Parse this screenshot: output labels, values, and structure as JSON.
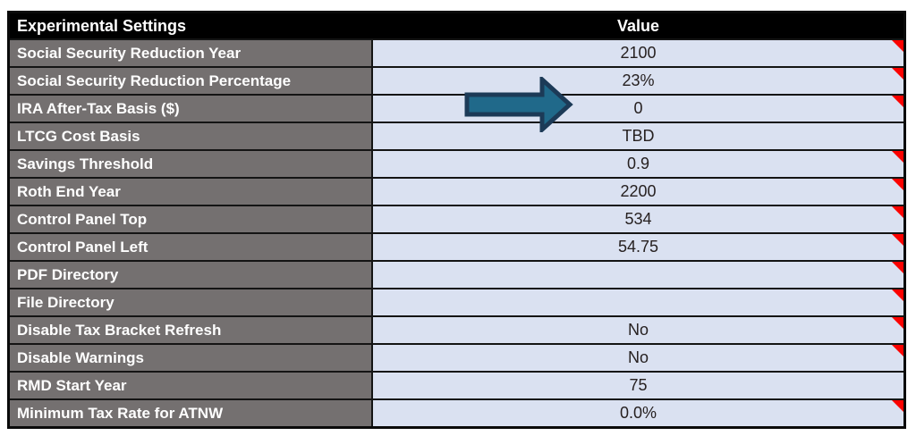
{
  "table": {
    "header": {
      "settings_label": "Experimental Settings",
      "value_label": "Value"
    },
    "rows": [
      {
        "label": "Social Security Reduction Year",
        "value": "2100",
        "note": true,
        "arrow": false
      },
      {
        "label": "Social Security Reduction Percentage",
        "value": "23%",
        "note": true,
        "arrow": false
      },
      {
        "label": "IRA After-Tax Basis ($)",
        "value": "0",
        "note": true,
        "arrow": true
      },
      {
        "label": "LTCG Cost Basis",
        "value": "TBD",
        "note": false,
        "arrow": false
      },
      {
        "label": "Savings Threshold",
        "value": "0.9",
        "note": true,
        "arrow": false
      },
      {
        "label": "Roth End Year",
        "value": "2200",
        "note": true,
        "arrow": false
      },
      {
        "label": "Control Panel Top",
        "value": "534",
        "note": true,
        "arrow": false
      },
      {
        "label": "Control Panel Left",
        "value": "54.75",
        "note": true,
        "arrow": false
      },
      {
        "label": "PDF Directory",
        "value": "",
        "note": true,
        "arrow": false
      },
      {
        "label": "File Directory",
        "value": "",
        "note": true,
        "arrow": false
      },
      {
        "label": "Disable Tax Bracket Refresh",
        "value": "No",
        "note": true,
        "arrow": false
      },
      {
        "label": "Disable Warnings",
        "value": "No",
        "note": true,
        "arrow": false
      },
      {
        "label": "RMD Start Year",
        "value": "75",
        "note": false,
        "arrow": false
      },
      {
        "label": "Minimum Tax Rate for ATNW",
        "value": "0.0%",
        "note": true,
        "arrow": false
      }
    ]
  },
  "annotation": {
    "arrow_icon": "right-arrow",
    "arrow_fill": "#20698a",
    "arrow_stroke": "#1c3a57"
  },
  "colors": {
    "header_bg": "#000000",
    "label_bg": "#747070",
    "value_bg": "#dae1f1",
    "note_indicator": "#fb0200",
    "grid_line": "#141414"
  }
}
